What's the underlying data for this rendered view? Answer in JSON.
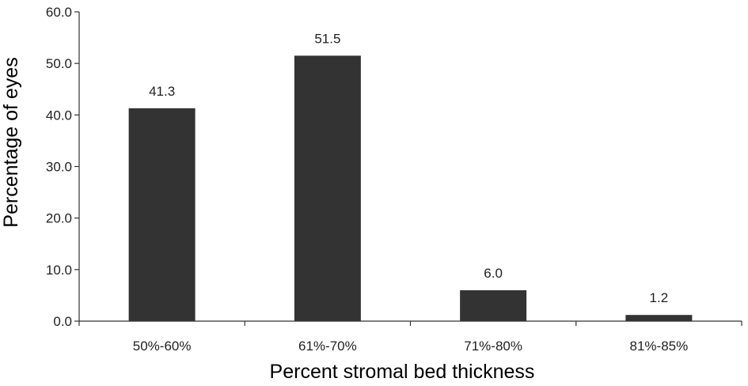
{
  "chart_data": {
    "type": "bar",
    "categories": [
      "50%-60%",
      "61%-70%",
      "71%-80%",
      "81%-85%"
    ],
    "values": [
      41.3,
      51.5,
      6.0,
      1.2
    ],
    "data_labels": [
      "41.3",
      "51.5",
      "6.0",
      "1.2"
    ],
    "title": "",
    "xlabel": "Percent stromal bed thickness",
    "ylabel": "Percentage of eyes",
    "ylim": [
      0,
      60
    ],
    "yticks": [
      "0.0",
      "10.0",
      "20.0",
      "30.0",
      "40.0",
      "50.0",
      "60.0"
    ],
    "bar_color": "#333333",
    "grid": false,
    "legend": "none"
  }
}
